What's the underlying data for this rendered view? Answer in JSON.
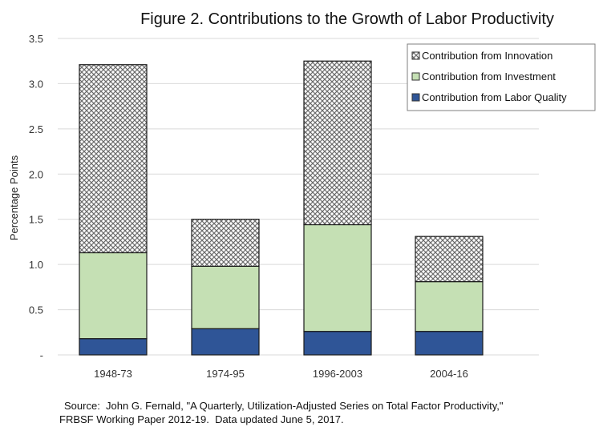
{
  "chart_data": {
    "type": "bar",
    "stacked": true,
    "title": "Figure 2.  Contributions to the Growth of Labor Productivity",
    "xlabel": "",
    "ylabel": "Percentage Points",
    "ylim": [
      0,
      3.5
    ],
    "yticks": [
      0,
      0.5,
      1.0,
      1.5,
      2.0,
      2.5,
      3.0,
      3.5
    ],
    "ytick_labels": [
      "-",
      "0.5",
      "1.0",
      "1.5",
      "2.0",
      "2.5",
      "3.0",
      "3.5"
    ],
    "grid": true,
    "legend_position": "top-right",
    "categories": [
      "1948-73",
      "1974-95",
      "1996-2003",
      "2004-16"
    ],
    "series": [
      {
        "name": "Contribution from Labor Quality",
        "color": "#2F5597",
        "pattern": "solid",
        "values": [
          0.18,
          0.29,
          0.26,
          0.26
        ]
      },
      {
        "name": "Contribution from Investment",
        "color": "#C5E0B4",
        "pattern": "solid",
        "values": [
          0.95,
          0.69,
          1.18,
          0.55
        ]
      },
      {
        "name": "Contribution from Innovation",
        "color": "#7F7F7F",
        "pattern": "crosshatch",
        "values": [
          2.08,
          0.52,
          1.81,
          0.5
        ]
      }
    ],
    "legend_order": [
      "Contribution from Innovation",
      "Contribution from Investment",
      "Contribution from Labor Quality"
    ]
  },
  "source": {
    "line1": "Source:  John G. Fernald, \"A Quarterly, Utilization-Adjusted Series on Total Factor Productivity,\"",
    "line2": "FRBSF Working Paper 2012-19.  Data updated June 5, 2017."
  }
}
